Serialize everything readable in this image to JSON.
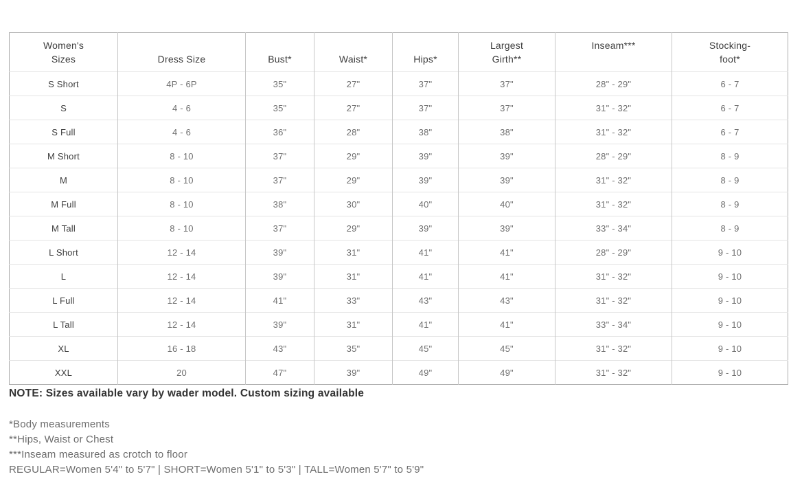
{
  "table": {
    "headers": [
      {
        "line1": "Women's",
        "line2": "Sizes"
      },
      {
        "line1": "",
        "line2": "Dress Size"
      },
      {
        "line1": "",
        "line2": "Bust*"
      },
      {
        "line1": "",
        "line2": "Waist*"
      },
      {
        "line1": "",
        "line2": "Hips*"
      },
      {
        "line1": "Largest",
        "line2": "Girth**"
      },
      {
        "line1": "Inseam***",
        "line2": ""
      },
      {
        "line1": "Stocking-",
        "line2": "foot*"
      }
    ],
    "rows": [
      {
        "size": "S Short",
        "dress": "4P - 6P",
        "bust": "35\"",
        "waist": "27\"",
        "hips": "37\"",
        "girth": "37\"",
        "inseam": "28\" - 29\"",
        "foot": "6 - 7"
      },
      {
        "size": "S",
        "dress": "4 - 6",
        "bust": "35\"",
        "waist": "27\"",
        "hips": "37\"",
        "girth": "37\"",
        "inseam": "31\" - 32\"",
        "foot": "6 - 7"
      },
      {
        "size": "S Full",
        "dress": "4 - 6",
        "bust": "36\"",
        "waist": "28\"",
        "hips": "38\"",
        "girth": "38\"",
        "inseam": "31\" - 32\"",
        "foot": "6 - 7"
      },
      {
        "size": "M Short",
        "dress": "8 - 10",
        "bust": "37\"",
        "waist": "29\"",
        "hips": "39\"",
        "girth": "39\"",
        "inseam": "28\" - 29\"",
        "foot": "8 - 9"
      },
      {
        "size": "M",
        "dress": "8 - 10",
        "bust": "37\"",
        "waist": "29\"",
        "hips": "39\"",
        "girth": "39\"",
        "inseam": "31\" - 32\"",
        "foot": "8 - 9"
      },
      {
        "size": "M Full",
        "dress": "8 - 10",
        "bust": "38\"",
        "waist": "30\"",
        "hips": "40\"",
        "girth": "40\"",
        "inseam": "31\" - 32\"",
        "foot": "8 - 9"
      },
      {
        "size": "M Tall",
        "dress": "8 - 10",
        "bust": "37\"",
        "waist": "29\"",
        "hips": "39\"",
        "girth": "39\"",
        "inseam": "33\" - 34\"",
        "foot": "8 - 9"
      },
      {
        "size": "L Short",
        "dress": "12 - 14",
        "bust": "39\"",
        "waist": "31\"",
        "hips": "41\"",
        "girth": "41\"",
        "inseam": "28\" - 29\"",
        "foot": "9 - 10"
      },
      {
        "size": "L",
        "dress": "12 - 14",
        "bust": "39\"",
        "waist": "31\"",
        "hips": "41\"",
        "girth": "41\"",
        "inseam": "31\" - 32\"",
        "foot": "9 - 10"
      },
      {
        "size": "L Full",
        "dress": "12 - 14",
        "bust": "41\"",
        "waist": "33\"",
        "hips": "43\"",
        "girth": "43\"",
        "inseam": "31\" - 32\"",
        "foot": "9 - 10"
      },
      {
        "size": "L Tall",
        "dress": "12 - 14",
        "bust": "39\"",
        "waist": "31\"",
        "hips": "41\"",
        "girth": "41\"",
        "inseam": "33\" - 34\"",
        "foot": "9 - 10"
      },
      {
        "size": "XL",
        "dress": "16 - 18",
        "bust": "43\"",
        "waist": "35\"",
        "hips": "45\"",
        "girth": "45\"",
        "inseam": "31\" - 32\"",
        "foot": "9 - 10"
      },
      {
        "size": "XXL",
        "dress": "20",
        "bust": "47\"",
        "waist": "39\"",
        "hips": "49\"",
        "girth": "49\"",
        "inseam": "31\" - 32\"",
        "foot": "9 - 10"
      }
    ]
  },
  "note": "NOTE: Sizes available vary by wader model. Custom sizing available",
  "footnotes": [
    "*Body measurements",
    "**Hips, Waist or Chest",
    "***Inseam measured as crotch to floor",
    "REGULAR=Women 5'4\" to 5'7\" | SHORT=Women 5'1\" to 5'3\" | TALL=Women 5'7\" to 5'9\""
  ]
}
